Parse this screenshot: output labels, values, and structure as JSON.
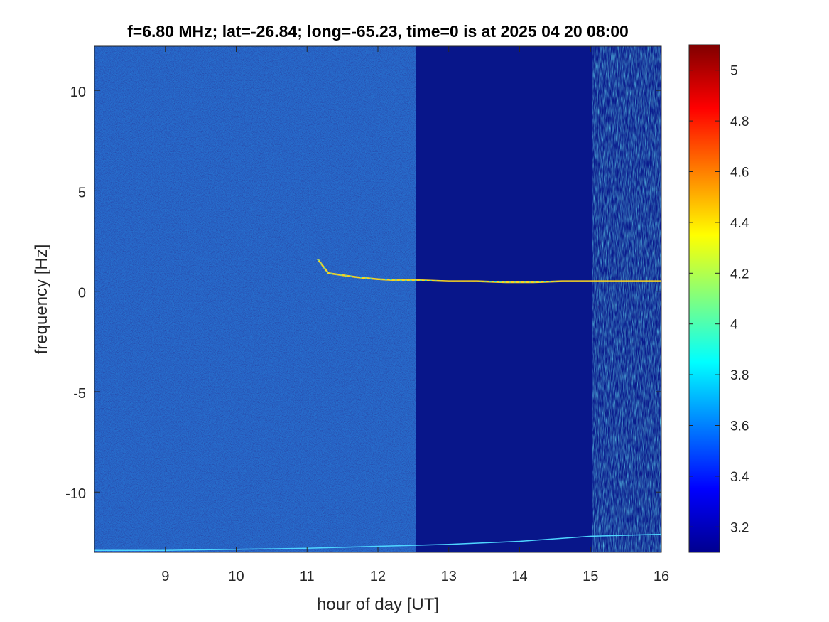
{
  "chart_data": {
    "type": "heatmap",
    "title": "f=6.80 MHz;  lat=-26.84; long=-65.23, time=0 is at 2025 04 20 08:00",
    "xlabel": "hour of day [UT]",
    "ylabel": "frequency [Hz]",
    "xlim": [
      8,
      16
    ],
    "ylim": [
      -13,
      12.2
    ],
    "xticks": [
      9,
      10,
      11,
      12,
      13,
      14,
      15,
      16
    ],
    "xtick_labels": [
      "9",
      "10",
      "11",
      "12",
      "13",
      "14",
      "15",
      "16"
    ],
    "yticks": [
      10,
      5,
      0,
      -5,
      -10
    ],
    "ytick_labels": [
      "10",
      "5",
      "0",
      "-5",
      "-10"
    ],
    "colormap": "jet",
    "color_range": [
      3.1,
      5.1
    ],
    "colorbar_ticks": [
      5,
      4.8,
      4.6,
      4.4,
      4.2,
      4,
      3.8,
      3.6,
      3.4,
      3.2
    ],
    "colorbar_tick_labels": [
      "5",
      "4.8",
      "4.6",
      "4.4",
      "4.2",
      "4",
      "3.8",
      "3.6",
      "3.4",
      "3.2"
    ],
    "background_color": "#0a1a8c",
    "features": {
      "doppler_trace": {
        "x": [
          11.15,
          11.3,
          11.5,
          11.7,
          12.0,
          12.3,
          12.6,
          13.0,
          13.4,
          13.8,
          14.2,
          14.6,
          15.0,
          15.5,
          16.0
        ],
        "y": [
          1.6,
          0.9,
          0.8,
          0.7,
          0.6,
          0.55,
          0.55,
          0.5,
          0.5,
          0.45,
          0.45,
          0.5,
          0.5,
          0.5,
          0.5
        ]
      },
      "low_trace": {
        "x": [
          8.0,
          9.0,
          10.0,
          11.0,
          12.0,
          13.0,
          14.0,
          15.0,
          16.0
        ],
        "y": [
          -12.9,
          -12.9,
          -12.85,
          -12.8,
          -12.7,
          -12.6,
          -12.45,
          -12.2,
          -12.1
        ]
      }
    }
  }
}
